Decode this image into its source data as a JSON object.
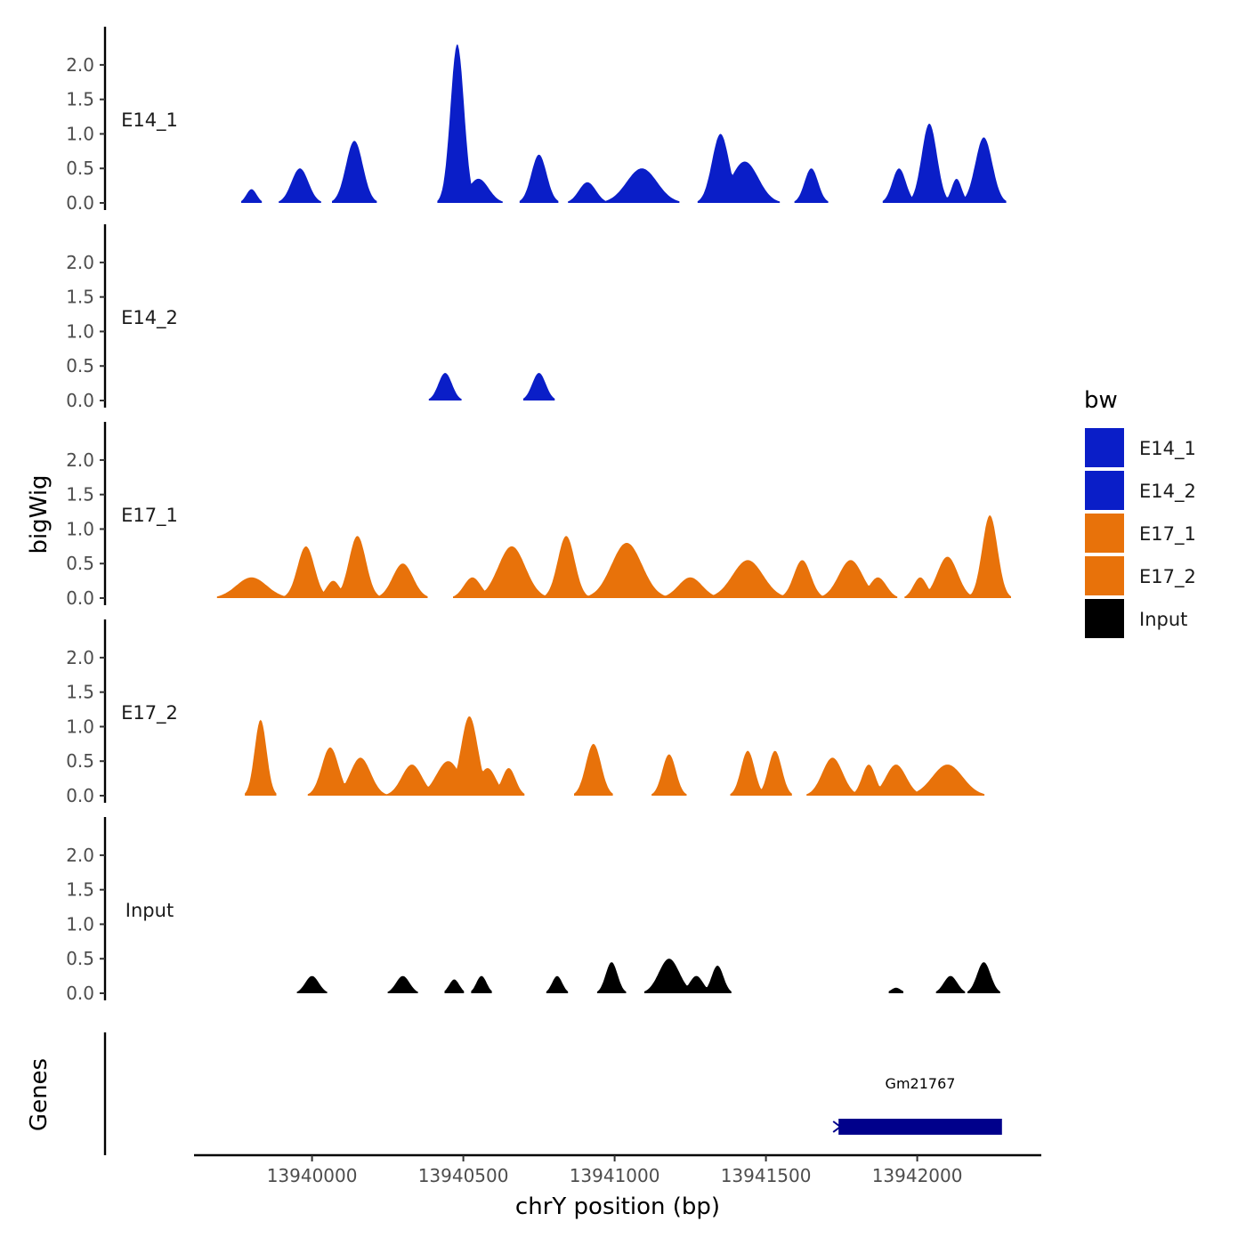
{
  "chart_data": {
    "type": "area",
    "ylabel": "bigWig",
    "xlabel": "chrY position (bp)",
    "xlim": [
      13939610,
      13942410
    ],
    "ylim": [
      0,
      2.45
    ],
    "y_ticks": [
      0.0,
      0.5,
      1.0,
      1.5,
      2.0
    ],
    "y_tick_labels": [
      "0.0",
      "0.5",
      "1.0",
      "1.5",
      "2.0"
    ],
    "x_ticks": [
      13940000,
      13940500,
      13941000,
      13941500,
      13942000
    ],
    "x_tick_labels": [
      "13940000",
      "13940500",
      "13941000",
      "13941500",
      "13942000"
    ],
    "legend": {
      "title": "bw",
      "entries": [
        {
          "label": "E14_1",
          "color": "#0a1ec8"
        },
        {
          "label": "E14_2",
          "color": "#0a1ec8"
        },
        {
          "label": "E17_1",
          "color": "#e8720a"
        },
        {
          "label": "E17_2",
          "color": "#e8720a"
        },
        {
          "label": "Input",
          "color": "#000000"
        }
      ]
    },
    "series": [
      {
        "name": "E14_1",
        "color": "#0a1ec8",
        "peaks": [
          [
            13939800,
            0.2,
            30
          ],
          [
            13939960,
            0.5,
            50
          ],
          [
            13940140,
            0.9,
            50
          ],
          [
            13940480,
            2.3,
            40
          ],
          [
            13940550,
            0.35,
            60
          ],
          [
            13940750,
            0.7,
            45
          ],
          [
            13940910,
            0.3,
            50
          ],
          [
            13941090,
            0.5,
            90
          ],
          [
            13941350,
            1.0,
            50
          ],
          [
            13941430,
            0.6,
            80
          ],
          [
            13941650,
            0.5,
            40
          ],
          [
            13941940,
            0.5,
            40
          ],
          [
            13942040,
            1.15,
            45
          ],
          [
            13942130,
            0.35,
            30
          ],
          [
            13942220,
            0.95,
            50
          ]
        ]
      },
      {
        "name": "E14_2",
        "color": "#0a1ec8",
        "peaks": [
          [
            13940440,
            0.4,
            40
          ],
          [
            13940750,
            0.4,
            40
          ]
        ]
      },
      {
        "name": "E17_1",
        "color": "#e8720a",
        "peaks": [
          [
            13939800,
            0.3,
            90
          ],
          [
            13939980,
            0.75,
            50
          ],
          [
            13940070,
            0.25,
            40
          ],
          [
            13940150,
            0.9,
            50
          ],
          [
            13940300,
            0.5,
            60
          ],
          [
            13940530,
            0.3,
            50
          ],
          [
            13940660,
            0.75,
            80
          ],
          [
            13940840,
            0.9,
            50
          ],
          [
            13941040,
            0.8,
            90
          ],
          [
            13941250,
            0.3,
            70
          ],
          [
            13941440,
            0.55,
            90
          ],
          [
            13941620,
            0.55,
            50
          ],
          [
            13941780,
            0.55,
            70
          ],
          [
            13941870,
            0.3,
            50
          ],
          [
            13942010,
            0.3,
            40
          ],
          [
            13942100,
            0.6,
            60
          ],
          [
            13942240,
            1.2,
            45
          ]
        ]
      },
      {
        "name": "E17_2",
        "color": "#e8720a",
        "peaks": [
          [
            13939830,
            1.1,
            35
          ],
          [
            13940060,
            0.7,
            50
          ],
          [
            13940160,
            0.55,
            60
          ],
          [
            13940330,
            0.45,
            60
          ],
          [
            13940450,
            0.5,
            70
          ],
          [
            13940520,
            1.15,
            50
          ],
          [
            13940580,
            0.4,
            50
          ],
          [
            13940650,
            0.4,
            40
          ],
          [
            13940930,
            0.75,
            45
          ],
          [
            13941180,
            0.6,
            40
          ],
          [
            13941440,
            0.65,
            40
          ],
          [
            13941530,
            0.65,
            40
          ],
          [
            13941720,
            0.55,
            60
          ],
          [
            13941840,
            0.45,
            40
          ],
          [
            13941930,
            0.45,
            60
          ],
          [
            13942100,
            0.45,
            90
          ]
        ]
      },
      {
        "name": "Input",
        "color": "#000000",
        "peaks": [
          [
            13940000,
            0.25,
            40
          ],
          [
            13940300,
            0.25,
            40
          ],
          [
            13940470,
            0.2,
            30
          ],
          [
            13940560,
            0.25,
            30
          ],
          [
            13940810,
            0.25,
            30
          ],
          [
            13940990,
            0.45,
            35
          ],
          [
            13941180,
            0.5,
            60
          ],
          [
            13941270,
            0.25,
            40
          ],
          [
            13941340,
            0.4,
            35
          ],
          [
            13941930,
            0.08,
            30
          ],
          [
            13942110,
            0.25,
            40
          ],
          [
            13942220,
            0.45,
            40
          ]
        ]
      }
    ],
    "genes": {
      "label": "Genes",
      "items": [
        {
          "name": "Gm21767",
          "start": 13941740,
          "end": 13942280,
          "strand": "-",
          "color": "#00008b"
        }
      ]
    }
  }
}
